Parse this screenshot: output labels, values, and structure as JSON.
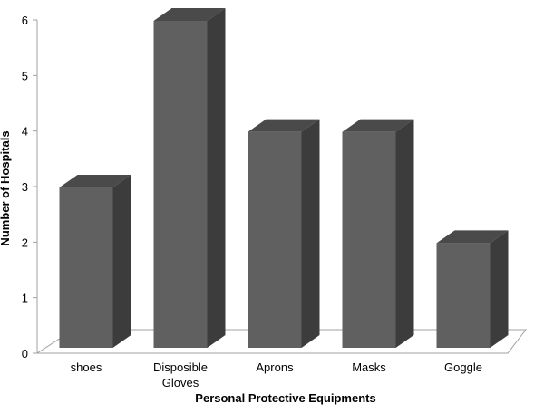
{
  "chart_data": {
    "type": "bar",
    "style": "3d-column",
    "title": "",
    "xlabel": "Personal Protective Equipments",
    "ylabel": "Number of Hospitals",
    "categories": [
      [
        "shoes"
      ],
      [
        "Disposible",
        "Gloves"
      ],
      [
        "Aprons"
      ],
      [
        "Masks"
      ],
      [
        "Goggle"
      ]
    ],
    "values": [
      3,
      6,
      4,
      4,
      2
    ],
    "ylim": [
      0,
      6
    ],
    "yticks": [
      "0",
      "1",
      "2",
      "3",
      "4",
      "5",
      "6"
    ],
    "grid": false,
    "legend": "none",
    "colors": {
      "front": "#606060",
      "top": "#4a4a4a",
      "side": "#3c3c3c",
      "axis": "#a0a0a0"
    }
  }
}
